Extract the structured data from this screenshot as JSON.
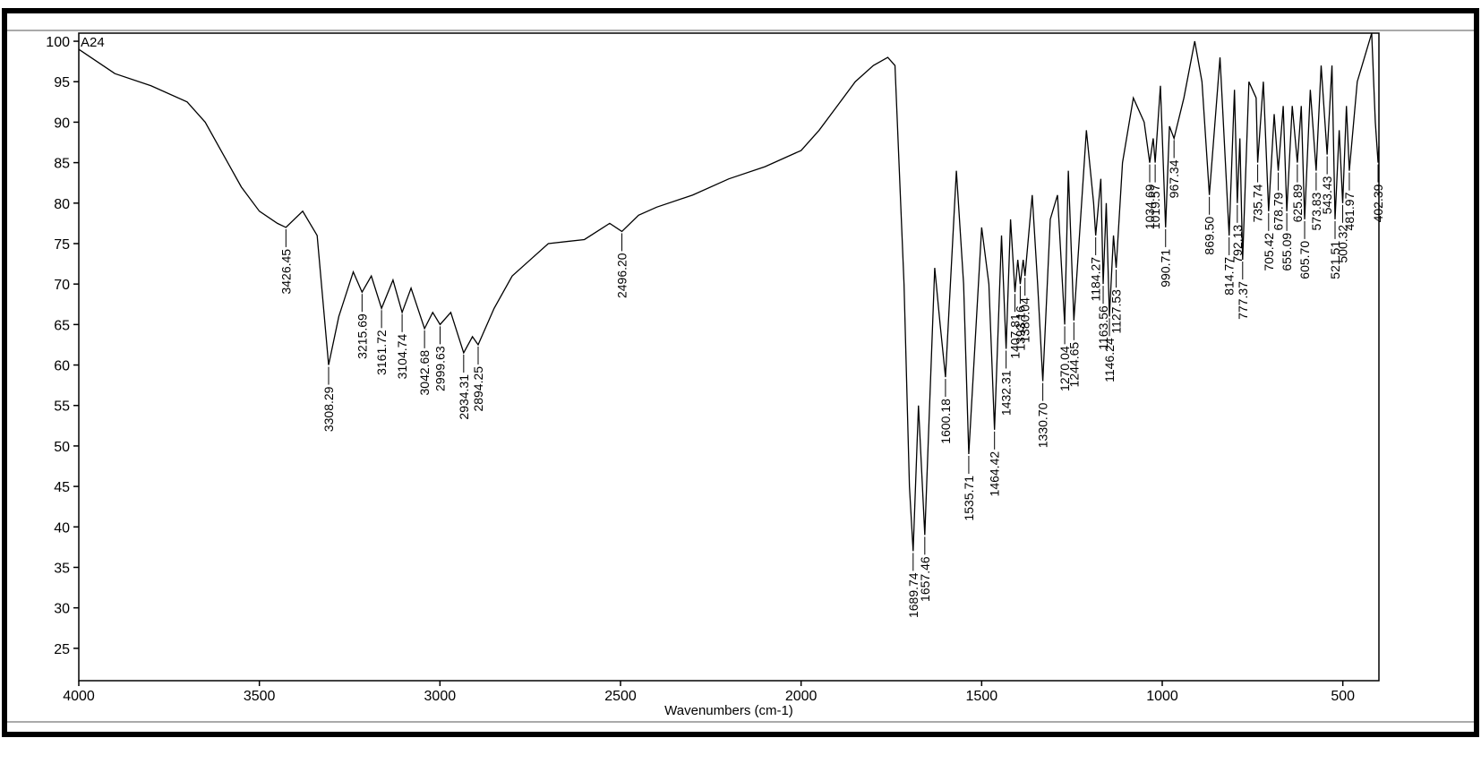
{
  "chart_data": {
    "type": "line",
    "title": "A24",
    "x_label": "Wavenumbers (cm-1)",
    "xlim": [
      4000,
      400
    ],
    "ylim": [
      21,
      101
    ],
    "xticks": [
      4000,
      3500,
      3000,
      2500,
      2000,
      1500,
      1000,
      500
    ],
    "yticks": [
      25,
      30,
      35,
      40,
      45,
      50,
      55,
      60,
      65,
      70,
      75,
      80,
      85,
      90,
      95,
      100
    ],
    "color": "#000000",
    "x": [
      4000,
      3900,
      3800,
      3700,
      3650,
      3600,
      3550,
      3500,
      3450,
      3426.45,
      3380,
      3340,
      3308.29,
      3280,
      3240,
      3215.69,
      3190,
      3161.72,
      3130,
      3104.74,
      3080,
      3042.68,
      3020,
      2999.63,
      2970,
      2934.31,
      2910,
      2894.25,
      2850,
      2800,
      2750,
      2700,
      2600,
      2530,
      2496.2,
      2450,
      2400,
      2300,
      2200,
      2100,
      2000,
      1950,
      1900,
      1850,
      1800,
      1760,
      1740,
      1715,
      1700,
      1689.74,
      1675,
      1657.46,
      1630,
      1615,
      1600.18,
      1570,
      1550,
      1535.71,
      1500,
      1480,
      1464.42,
      1445,
      1432.31,
      1420,
      1407.81,
      1400,
      1393.16,
      1385,
      1380.04,
      1360,
      1345,
      1330.7,
      1310,
      1290,
      1270.04,
      1260,
      1244.65,
      1210,
      1190,
      1184.27,
      1170,
      1163.56,
      1155,
      1146.24,
      1135,
      1127.53,
      1110,
      1080,
      1050,
      1034.69,
      1025,
      1019.57,
      1005,
      990.71,
      980,
      967.34,
      940,
      910,
      890,
      869.5,
      840,
      814.77,
      800,
      792.13,
      785,
      777.37,
      760,
      740,
      735.74,
      720,
      705.42,
      690,
      678.79,
      665,
      655.09,
      640,
      625.89,
      615,
      605.7,
      590,
      573.83,
      560,
      543.43,
      530,
      521.51,
      510,
      500.32,
      490,
      481.97,
      460,
      420,
      410,
      402.39,
      400
    ],
    "values": [
      99,
      96,
      94.5,
      92.5,
      90,
      86,
      82,
      79,
      77.5,
      77,
      79,
      76,
      60,
      66,
      71.5,
      69,
      71,
      67,
      70.5,
      66.5,
      69.5,
      64.5,
      66.5,
      65,
      66.5,
      61.5,
      63.5,
      62.5,
      67,
      71,
      73,
      75,
      75.5,
      77.5,
      76.5,
      78.5,
      79.5,
      81,
      83,
      84.5,
      86.5,
      89,
      92,
      95,
      97,
      98,
      97,
      70,
      45,
      37,
      55,
      39,
      72,
      65,
      58.5,
      84,
      70,
      49,
      77,
      70,
      52,
      76,
      62,
      78,
      69,
      73,
      70,
      73,
      71,
      81,
      70,
      58,
      78,
      81,
      65,
      84,
      65.5,
      89,
      80,
      76,
      83,
      70,
      80,
      66,
      76,
      72,
      85,
      93,
      90,
      85,
      88,
      85,
      94.5,
      77,
      89.5,
      88,
      93,
      100,
      95,
      81,
      98,
      76,
      94,
      80,
      88,
      73,
      95,
      93,
      85,
      95,
      79,
      91,
      84,
      92,
      79,
      92,
      85,
      92,
      78,
      94,
      84,
      97,
      86,
      97,
      78,
      89,
      80,
      92,
      84,
      95,
      101,
      90,
      85,
      87
    ],
    "peak_labels": [
      3426.45,
      3308.29,
      3215.69,
      3161.72,
      3104.74,
      3042.68,
      2999.63,
      2934.31,
      2894.25,
      2496.2,
      1689.74,
      1657.46,
      1600.18,
      1535.71,
      1464.42,
      1432.31,
      1407.81,
      1393.16,
      1380.04,
      1330.7,
      1270.04,
      1244.65,
      1184.27,
      1163.56,
      1146.24,
      1127.53,
      1034.69,
      1019.57,
      990.71,
      967.34,
      869.5,
      814.77,
      792.13,
      777.37,
      735.74,
      705.42,
      678.79,
      655.09,
      625.89,
      605.7,
      573.83,
      543.43,
      521.51,
      500.32,
      481.97,
      402.39
    ],
    "peak_label_text": [
      "3426.45",
      "3308.29",
      "3215.69",
      "3161.72",
      "3104.74",
      "3042.68",
      "2999.63",
      "2934.31",
      "2894.25",
      "2496.20",
      "1689.74",
      "1657.46",
      "1600.18",
      "1535.71",
      "1464.42",
      "1432.31",
      "1407.81",
      "1393.16",
      "1380.04",
      "1330.70",
      "1270.04",
      "1244.65",
      "1184.27",
      "1163.56",
      "1146.24",
      "1127.53",
      "1034.69",
      "1019.57",
      "990.71",
      "967.34",
      "869.50",
      "814.77",
      "792.13",
      "777.37",
      "735.74",
      "705.42",
      "678.79",
      "655.09",
      "625.89",
      "605.70",
      "573.83",
      "543.43",
      "521.51",
      "500.32",
      "481.97",
      "402.39"
    ]
  }
}
